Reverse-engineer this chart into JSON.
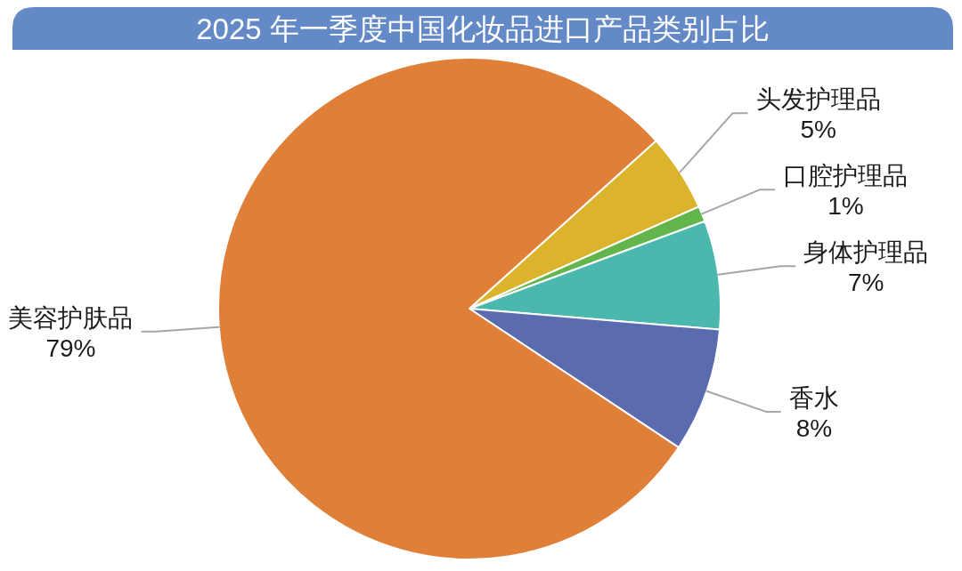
{
  "chart_data": {
    "type": "pie",
    "title": "2025 年一季度中国化妆品进口产品类别占比",
    "categories": [
      "头发护理品",
      "口腔护理品",
      "身体护理品",
      "香水",
      "美容护肤品"
    ],
    "values": [
      5,
      1,
      7,
      8,
      79
    ],
    "value_labels": [
      "5%",
      "1%",
      "7%",
      "8%",
      "79%"
    ],
    "colors": [
      "#dcb42b",
      "#62b54a",
      "#4bb8ae",
      "#5a6baf",
      "#df7f38"
    ]
  }
}
